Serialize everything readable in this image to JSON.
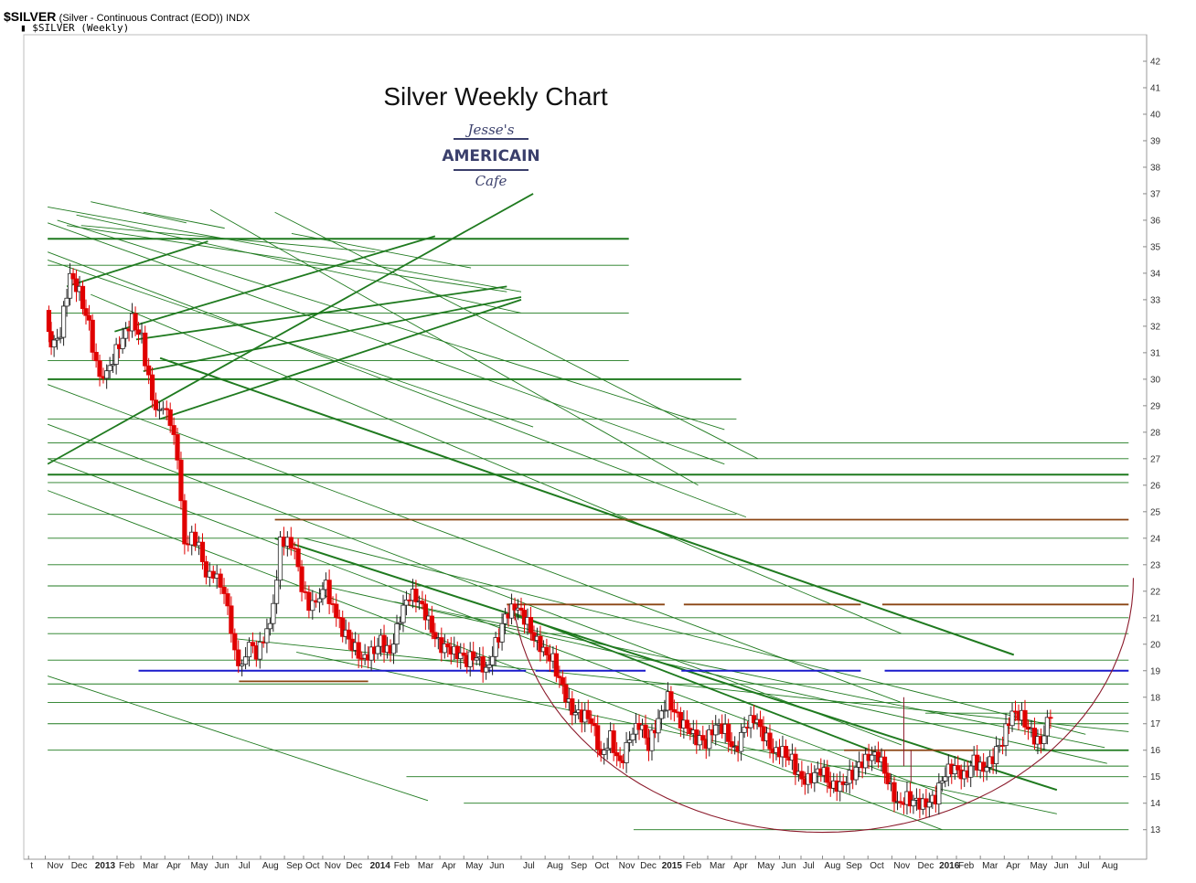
{
  "header": {
    "symbol": "$SILVER",
    "description": "(Silver - Continuous Contract (EOD))",
    "exchange": "INDX",
    "series_label": "$SILVER (Weekly)"
  },
  "colors": {
    "trend_green": "#1f7a1f",
    "resistance_brown": "#8b4513",
    "support_blue": "#1a1acc",
    "arc_maroon": "#8b1a2b",
    "candle_down": "#e00000",
    "candle_up": "#ffffff",
    "logo": "#3a3f6b"
  },
  "logo": {
    "line1": "Jesse's",
    "line2": "AMERICAIN",
    "line3": "Cafe"
  },
  "chart_data": {
    "type": "candlestick",
    "title": "Silver Weekly Chart",
    "y_ticks": [
      13,
      14,
      15,
      16,
      17,
      18,
      19,
      20,
      21,
      22,
      23,
      24,
      25,
      26,
      27,
      28,
      29,
      30,
      31,
      32,
      33,
      34,
      35,
      36,
      37,
      38,
      39,
      40,
      41,
      42
    ],
    "ylim": [
      12.3,
      43
    ],
    "x_labels": [
      {
        "label": "t",
        "x": 0.0
      },
      {
        "label": "Nov",
        "x": 0.7
      },
      {
        "label": "Dec",
        "x": 1.7
      },
      {
        "label": "2013",
        "x": 2.7,
        "bold": true
      },
      {
        "label": "Feb",
        "x": 3.7
      },
      {
        "label": "Mar",
        "x": 4.7
      },
      {
        "label": "Apr",
        "x": 5.7
      },
      {
        "label": "May",
        "x": 6.7
      },
      {
        "label": "Jun",
        "x": 7.7
      },
      {
        "label": "Jul",
        "x": 8.7
      },
      {
        "label": "Aug",
        "x": 9.7
      },
      {
        "label": "Sep",
        "x": 10.7
      },
      {
        "label": "Oct",
        "x": 11.5
      },
      {
        "label": "Nov",
        "x": 12.3
      },
      {
        "label": "Dec",
        "x": 13.2
      },
      {
        "label": "2014",
        "x": 14.2,
        "bold": true
      },
      {
        "label": "Feb",
        "x": 15.2
      },
      {
        "label": "Mar",
        "x": 16.2
      },
      {
        "label": "Apr",
        "x": 17.2
      },
      {
        "label": "May",
        "x": 18.2
      },
      {
        "label": "Jun",
        "x": 19.2
      },
      {
        "label": "Jul",
        "x": 20.6
      },
      {
        "label": "Aug",
        "x": 21.6
      },
      {
        "label": "Sep",
        "x": 22.6
      },
      {
        "label": "Oct",
        "x": 23.6
      },
      {
        "label": "Nov",
        "x": 24.6
      },
      {
        "label": "Dec",
        "x": 25.5
      },
      {
        "label": "2015",
        "x": 26.4,
        "bold": true
      },
      {
        "label": "Feb",
        "x": 27.4
      },
      {
        "label": "Mar",
        "x": 28.4
      },
      {
        "label": "Apr",
        "x": 29.4
      },
      {
        "label": "May",
        "x": 30.4
      },
      {
        "label": "Jun",
        "x": 31.4
      },
      {
        "label": "Jul",
        "x": 32.3
      },
      {
        "label": "Aug",
        "x": 33.2
      },
      {
        "label": "Sep",
        "x": 34.1
      },
      {
        "label": "Oct",
        "x": 35.1
      },
      {
        "label": "Nov",
        "x": 36.1
      },
      {
        "label": "Dec",
        "x": 37.1
      },
      {
        "label": "2016",
        "x": 38.0,
        "bold": true
      },
      {
        "label": "Feb",
        "x": 38.8
      },
      {
        "label": "Mar",
        "x": 39.8
      },
      {
        "label": "Apr",
        "x": 40.8
      },
      {
        "label": "May",
        "x": 41.8
      },
      {
        "label": "Jun",
        "x": 42.8
      },
      {
        "label": "Jul",
        "x": 43.8
      },
      {
        "label": "Aug",
        "x": 44.8
      }
    ],
    "xlim": [
      -0.2,
      46.6
    ],
    "price_path": [
      [
        0.8,
        32.6
      ],
      [
        1.0,
        31.0
      ],
      [
        1.4,
        31.8
      ],
      [
        1.8,
        34.0
      ],
      [
        2.2,
        33.3
      ],
      [
        2.6,
        32.0
      ],
      [
        2.9,
        30.5
      ],
      [
        3.2,
        29.8
      ],
      [
        3.6,
        30.8
      ],
      [
        4.0,
        31.6
      ],
      [
        4.4,
        32.3
      ],
      [
        4.8,
        31.5
      ],
      [
        5.1,
        30.0
      ],
      [
        5.4,
        28.6
      ],
      [
        5.7,
        28.8
      ],
      [
        6.0,
        28.4
      ],
      [
        6.3,
        27.2
      ],
      [
        6.6,
        23.9
      ],
      [
        6.9,
        24.1
      ],
      [
        7.2,
        23.6
      ],
      [
        7.5,
        22.4
      ],
      [
        7.8,
        22.6
      ],
      [
        8.1,
        22.4
      ],
      [
        8.4,
        21.6
      ],
      [
        8.7,
        19.7
      ],
      [
        9.0,
        19.0
      ],
      [
        9.3,
        19.9
      ],
      [
        9.6,
        19.5
      ],
      [
        9.9,
        20.3
      ],
      [
        10.3,
        21.3
      ],
      [
        10.6,
        24.0
      ],
      [
        10.9,
        23.8
      ],
      [
        11.2,
        23.4
      ],
      [
        11.5,
        22.0
      ],
      [
        11.8,
        21.5
      ],
      [
        12.1,
        21.8
      ],
      [
        12.5,
        22.2
      ],
      [
        12.8,
        21.3
      ],
      [
        13.2,
        20.5
      ],
      [
        13.6,
        20.0
      ],
      [
        14.0,
        19.5
      ],
      [
        14.4,
        19.7
      ],
      [
        14.8,
        20.1
      ],
      [
        15.2,
        19.6
      ],
      [
        15.6,
        21.0
      ],
      [
        16.0,
        21.9
      ],
      [
        16.4,
        21.7
      ],
      [
        16.8,
        20.9
      ],
      [
        17.2,
        20.0
      ],
      [
        17.6,
        19.8
      ],
      [
        18.0,
        19.6
      ],
      [
        18.4,
        19.4
      ],
      [
        18.8,
        19.6
      ],
      [
        19.2,
        19.0
      ],
      [
        19.6,
        20.0
      ],
      [
        20.0,
        21.0
      ],
      [
        20.4,
        21.4
      ],
      [
        20.8,
        21.0
      ],
      [
        21.2,
        20.3
      ],
      [
        21.6,
        19.8
      ],
      [
        22.0,
        19.4
      ],
      [
        22.4,
        18.3
      ],
      [
        22.8,
        17.4
      ],
      [
        23.2,
        17.3
      ],
      [
        23.6,
        17.2
      ],
      [
        24.0,
        15.8
      ],
      [
        24.4,
        16.5
      ],
      [
        24.8,
        15.4
      ],
      [
        25.2,
        16.4
      ],
      [
        25.6,
        17.0
      ],
      [
        26.0,
        16.2
      ],
      [
        26.4,
        17.2
      ],
      [
        26.8,
        18.0
      ],
      [
        27.2,
        17.2
      ],
      [
        27.6,
        16.8
      ],
      [
        28.0,
        16.4
      ],
      [
        28.4,
        16.3
      ],
      [
        28.8,
        17.0
      ],
      [
        29.2,
        16.8
      ],
      [
        29.6,
        15.9
      ],
      [
        30.0,
        16.8
      ],
      [
        30.4,
        17.2
      ],
      [
        30.8,
        16.6
      ],
      [
        31.2,
        16.0
      ],
      [
        31.6,
        16.0
      ],
      [
        32.0,
        15.6
      ],
      [
        32.4,
        14.8
      ],
      [
        32.8,
        14.9
      ],
      [
        33.2,
        15.3
      ],
      [
        33.6,
        14.7
      ],
      [
        34.0,
        14.7
      ],
      [
        34.4,
        15.0
      ],
      [
        34.8,
        15.4
      ],
      [
        35.2,
        15.7
      ],
      [
        35.6,
        15.8
      ],
      [
        36.0,
        14.9
      ],
      [
        36.4,
        14.0
      ],
      [
        36.8,
        14.2
      ],
      [
        37.2,
        14.0
      ],
      [
        37.6,
        13.9
      ],
      [
        38.0,
        14.2
      ],
      [
        38.4,
        15.2
      ],
      [
        38.8,
        15.4
      ],
      [
        39.2,
        15.0
      ],
      [
        39.6,
        15.6
      ],
      [
        40.0,
        15.2
      ],
      [
        40.4,
        15.7
      ],
      [
        40.8,
        16.4
      ],
      [
        41.2,
        17.5
      ],
      [
        41.6,
        17.3
      ],
      [
        42.0,
        16.6
      ],
      [
        42.4,
        16.2
      ],
      [
        42.8,
        17.4
      ]
    ],
    "lines": [
      {
        "c": "green",
        "w": 1.8,
        "p": [
          [
            0.8,
            26.8
          ],
          [
            21.1,
            37.0
          ]
        ]
      },
      {
        "c": "green",
        "w": 1.8,
        "p": [
          [
            4.8,
            30.3
          ],
          [
            20.6,
            33.1
          ]
        ]
      },
      {
        "c": "green",
        "w": 1.8,
        "p": [
          [
            5.5,
            28.5
          ],
          [
            20.6,
            33.0
          ]
        ]
      },
      {
        "c": "green",
        "w": 1.8,
        "p": [
          [
            1.6,
            33.5
          ],
          [
            7.5,
            35.2
          ]
        ]
      },
      {
        "c": "green",
        "w": 1.8,
        "p": [
          [
            3.6,
            31.8
          ],
          [
            17.0,
            35.4
          ]
        ]
      },
      {
        "c": "green",
        "w": 1.8,
        "p": [
          [
            4.5,
            31.5
          ],
          [
            20.0,
            33.5
          ]
        ]
      },
      {
        "c": "green",
        "w": 2.0,
        "p": [
          [
            0.8,
            35.3
          ],
          [
            25.1,
            35.3
          ]
        ]
      },
      {
        "c": "green",
        "w": 2.0,
        "p": [
          [
            0.8,
            30.0
          ],
          [
            29.8,
            30.0
          ]
        ]
      },
      {
        "c": "green",
        "w": 2.0,
        "p": [
          [
            0.8,
            26.4
          ],
          [
            46.0,
            26.4
          ]
        ]
      },
      {
        "c": "green",
        "w": 2.0,
        "p": [
          [
            5.5,
            30.8
          ],
          [
            41.2,
            19.6
          ]
        ]
      },
      {
        "c": "green",
        "w": 2.0,
        "p": [
          [
            10.3,
            24.0
          ],
          [
            43.0,
            14.5
          ]
        ]
      },
      {
        "c": "green",
        "w": 1.8,
        "p": [
          [
            20.2,
            21.2
          ],
          [
            35.5,
            15.9
          ]
        ]
      },
      {
        "c": "green",
        "w": 1.8,
        "p": [
          [
            42.1,
            16.0
          ],
          [
            46.0,
            16.0
          ]
        ]
      },
      {
        "c": "brown",
        "w": 1.8,
        "p": [
          [
            10.3,
            24.7
          ],
          [
            46.0,
            24.7
          ]
        ]
      },
      {
        "c": "brown",
        "w": 1.8,
        "p": [
          [
            20.0,
            21.5
          ],
          [
            26.6,
            21.5
          ]
        ]
      },
      {
        "c": "brown",
        "w": 1.8,
        "p": [
          [
            27.4,
            21.5
          ],
          [
            34.8,
            21.5
          ]
        ]
      },
      {
        "c": "brown",
        "w": 1.8,
        "p": [
          [
            35.7,
            21.5
          ],
          [
            46.0,
            21.5
          ]
        ]
      },
      {
        "c": "brown",
        "w": 1.8,
        "p": [
          [
            8.8,
            18.6
          ],
          [
            14.2,
            18.6
          ]
        ]
      },
      {
        "c": "brown",
        "w": 1.8,
        "p": [
          [
            34.1,
            16.0
          ],
          [
            39.5,
            16.0
          ]
        ]
      },
      {
        "c": "blue",
        "w": 2.0,
        "p": [
          [
            4.6,
            19.0
          ],
          [
            20.8,
            19.0
          ]
        ]
      },
      {
        "c": "blue",
        "w": 2.0,
        "p": [
          [
            21.2,
            19.0
          ],
          [
            25.8,
            19.0
          ]
        ]
      },
      {
        "c": "blue",
        "w": 2.0,
        "p": [
          [
            27.3,
            19.0
          ],
          [
            34.8,
            19.0
          ]
        ]
      },
      {
        "c": "blue",
        "w": 2.0,
        "p": [
          [
            35.8,
            19.0
          ],
          [
            46.0,
            19.0
          ]
        ]
      }
    ],
    "thin_lines": [
      [
        [
          0.8,
          36.5
        ],
        [
          20.6,
          33.3
        ]
      ],
      [
        [
          1.2,
          36.0
        ],
        [
          29.1,
          28.1
        ]
      ],
      [
        [
          0.8,
          35.9
        ],
        [
          29.1,
          26.8
        ]
      ],
      [
        [
          2.0,
          36.2
        ],
        [
          20.6,
          32.5
        ]
      ],
      [
        [
          0.8,
          34.8
        ],
        [
          30.0,
          24.8
        ]
      ],
      [
        [
          1.6,
          35.8
        ],
        [
          20.0,
          33.3
        ]
      ],
      [
        [
          2.6,
          33.2
        ],
        [
          36.5,
          20.4
        ]
      ],
      [
        [
          0.8,
          29.8
        ],
        [
          36.5,
          17.8
        ]
      ],
      [
        [
          0.8,
          28.3
        ],
        [
          36.5,
          16.2
        ]
      ],
      [
        [
          0.8,
          27.0
        ],
        [
          39.3,
          14.0
        ]
      ],
      [
        [
          0.8,
          25.8
        ],
        [
          38.2,
          13.0
        ]
      ],
      [
        [
          2.2,
          35.8
        ],
        [
          14.5,
          34.8
        ]
      ],
      [
        [
          7.6,
          36.4
        ],
        [
          28.0,
          26.0
        ]
      ],
      [
        [
          10.3,
          36.3
        ],
        [
          30.5,
          27.0
        ]
      ],
      [
        [
          11.5,
          24.0
        ],
        [
          44.2,
          16.6
        ]
      ],
      [
        [
          12.3,
          22.2
        ],
        [
          45.1,
          15.5
        ]
      ],
      [
        [
          15.3,
          21.6
        ],
        [
          45.0,
          16.1
        ]
      ],
      [
        [
          8.7,
          20.2
        ],
        [
          46.0,
          16.7
        ]
      ],
      [
        [
          11.2,
          19.7
        ],
        [
          43.0,
          13.6
        ]
      ],
      [
        [
          0.8,
          18.8
        ],
        [
          16.7,
          14.1
        ]
      ],
      [
        [
          2.6,
          36.7
        ],
        [
          6.6,
          35.9
        ]
      ],
      [
        [
          4.8,
          36.3
        ],
        [
          8.2,
          35.7
        ]
      ],
      [
        [
          11.0,
          35.5
        ],
        [
          18.5,
          34.2
        ]
      ],
      [
        [
          0.8,
          34.5
        ],
        [
          21.1,
          28.2
        ]
      ]
    ],
    "hlines_thin": [
      [
        0.8,
        25.1,
        34.3
      ],
      [
        0.8,
        25.1,
        32.5
      ],
      [
        0.8,
        25.1,
        30.7
      ],
      [
        0.8,
        29.6,
        28.5
      ],
      [
        0.8,
        46.0,
        27.6
      ],
      [
        0.8,
        46.0,
        27.0
      ],
      [
        0.8,
        46.0,
        26.1
      ],
      [
        0.8,
        29.6,
        24.9
      ],
      [
        0.8,
        46.0,
        24.0
      ],
      [
        0.8,
        46.0,
        23.0
      ],
      [
        0.8,
        46.0,
        22.2
      ],
      [
        0.8,
        46.0,
        21.0
      ],
      [
        0.8,
        46.0,
        20.4
      ],
      [
        0.8,
        46.0,
        19.4
      ],
      [
        0.8,
        46.0,
        18.5
      ],
      [
        0.8,
        46.0,
        17.8
      ],
      [
        0.8,
        46.0,
        17.0
      ],
      [
        0.8,
        46.0,
        16.0
      ],
      [
        15.8,
        46.0,
        15.0
      ],
      [
        18.2,
        46.0,
        14.0
      ],
      [
        25.3,
        46.0,
        13.0
      ],
      [
        33.2,
        46.0,
        15.4
      ],
      [
        37.5,
        46.0,
        17.4
      ]
    ],
    "arc": {
      "cx": 33.2,
      "cy": 22.5,
      "rx": 13.0,
      "ry": 9.6
    },
    "spikes": [
      [
        36.6,
        15.4,
        18.0
      ],
      [
        36.9,
        14.8,
        16.0
      ]
    ]
  }
}
